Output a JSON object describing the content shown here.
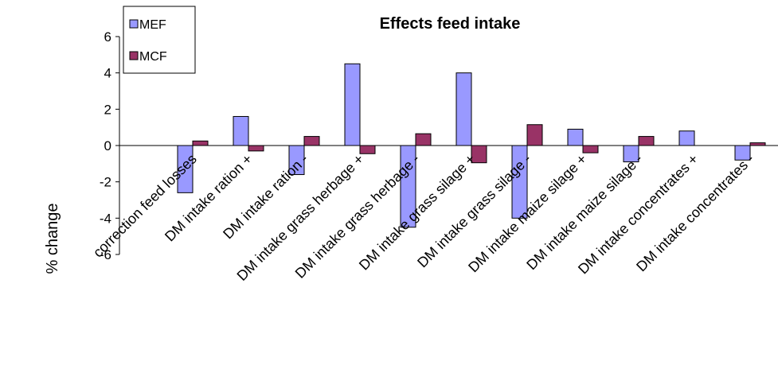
{
  "chart_data": {
    "type": "bar",
    "title": "Effects feed intake",
    "y_label": "% change",
    "categories": [
      "correction feed losses",
      "DM intake ration +",
      "DM intake ration -",
      "DM intake grass herbage +",
      "DM intake grass herbage -",
      "DM intake grass silage +",
      "DM intake grass silage -",
      "DM intake maize silage +",
      "DM intake maize silage -",
      "DM intake concentrates +",
      "DM intake concentrates -"
    ],
    "series": [
      {
        "name": "MEF",
        "color": "#9999ff",
        "values": [
          -2.6,
          1.6,
          -1.6,
          4.5,
          -4.5,
          4.0,
          -4.0,
          0.9,
          -0.9,
          0.8,
          -0.8
        ]
      },
      {
        "name": "MCF",
        "color": "#993366",
        "values": [
          0.25,
          -0.3,
          0.5,
          -0.45,
          0.65,
          -0.95,
          1.15,
          -0.4,
          0.5,
          0,
          0.15
        ]
      }
    ],
    "ylim": [
      -6,
      6
    ],
    "yticks": [
      -6,
      -4,
      -2,
      0,
      2,
      4,
      6
    ],
    "grid": false,
    "legend": "upper-left"
  }
}
